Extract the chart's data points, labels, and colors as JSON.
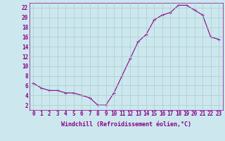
{
  "hours": [
    0,
    1,
    2,
    3,
    4,
    5,
    6,
    7,
    8,
    9,
    10,
    11,
    12,
    13,
    14,
    15,
    16,
    17,
    18,
    19,
    20,
    21,
    22,
    23
  ],
  "windchill": [
    6.5,
    5.5,
    5.0,
    5.0,
    4.5,
    4.5,
    4.0,
    3.5,
    2.0,
    2.0,
    4.5,
    8.0,
    11.5,
    15.0,
    16.5,
    19.5,
    20.5,
    21.0,
    22.5,
    22.5,
    21.5,
    20.5,
    16.0,
    15.5
  ],
  "line_color": "#880088",
  "marker": "+",
  "marker_size": 3,
  "marker_linewidth": 0.8,
  "bg_color": "#cce8ee",
  "grid_color": "#aacccc",
  "xlabel": "Windchill (Refroidissement éolien,°C)",
  "xlim_min": -0.5,
  "xlim_max": 23.5,
  "ylim_min": 1,
  "ylim_max": 23,
  "yticks": [
    2,
    4,
    6,
    8,
    10,
    12,
    14,
    16,
    18,
    20,
    22
  ],
  "xticks": [
    0,
    1,
    2,
    3,
    4,
    5,
    6,
    7,
    8,
    9,
    10,
    11,
    12,
    13,
    14,
    15,
    16,
    17,
    18,
    19,
    20,
    21,
    22,
    23
  ],
  "font_size": 5.5,
  "label_font_size": 6,
  "linewidth": 0.8
}
